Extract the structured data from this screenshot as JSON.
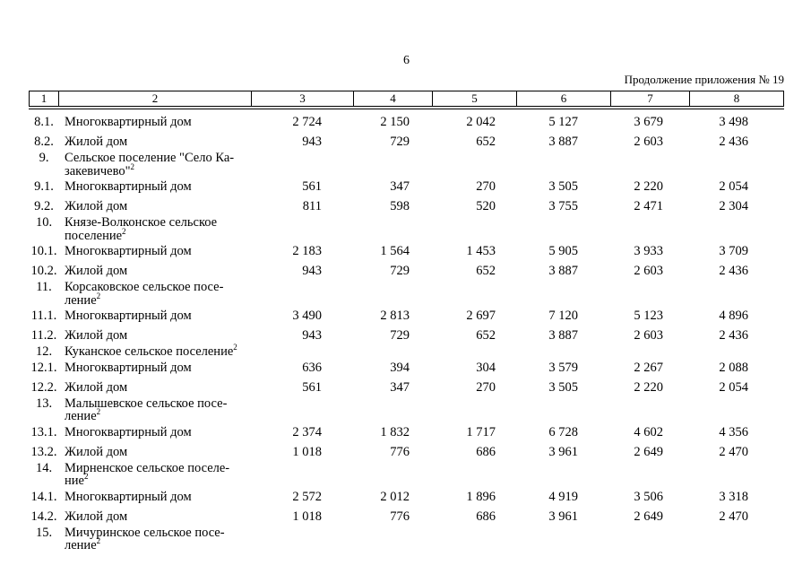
{
  "page": {
    "number": "6",
    "continuation_note": "Продолжение приложения № 19"
  },
  "table": {
    "header": [
      "1",
      "2",
      "3",
      "4",
      "5",
      "6",
      "7",
      "8"
    ],
    "rows": [
      {
        "type": "item",
        "num": "8.1.",
        "label": "Многоквартирный дом",
        "values": [
          "2 724",
          "2 150",
          "2 042",
          "5 127",
          "3 679",
          "3 498"
        ]
      },
      {
        "type": "item",
        "num": "8.2.",
        "label": "Жилой дом",
        "values": [
          "943",
          "729",
          "652",
          "3 887",
          "2 603",
          "2 436"
        ]
      },
      {
        "type": "section",
        "num": "9.",
        "label_lines": [
          "Сельское поселение \"Село Ка-",
          "закевичево\""
        ],
        "sup": "2"
      },
      {
        "type": "item",
        "num": "9.1.",
        "label": "Многоквартирный дом",
        "values": [
          "561",
          "347",
          "270",
          "3 505",
          "2 220",
          "2 054"
        ]
      },
      {
        "type": "item",
        "num": "9.2.",
        "label": "Жилой дом",
        "values": [
          "811",
          "598",
          "520",
          "3 755",
          "2 471",
          "2 304"
        ]
      },
      {
        "type": "section",
        "num": "10.",
        "label_lines": [
          "Князе-Волконское сельское",
          "поселение"
        ],
        "sup": "2"
      },
      {
        "type": "item",
        "num": "10.1.",
        "label": "Многоквартирный дом",
        "values": [
          "2 183",
          "1 564",
          "1 453",
          "5 905",
          "3 933",
          "3 709"
        ]
      },
      {
        "type": "item",
        "num": "10.2.",
        "label": "Жилой дом",
        "values": [
          "943",
          "729",
          "652",
          "3 887",
          "2 603",
          "2 436"
        ]
      },
      {
        "type": "section",
        "num": "11.",
        "label_lines": [
          "Корсаковское сельское посе-",
          "ление"
        ],
        "sup": "2"
      },
      {
        "type": "item",
        "num": "11.1.",
        "label": "Многоквартирный дом",
        "values": [
          "3 490",
          "2 813",
          "2 697",
          "7 120",
          "5 123",
          "4 896"
        ]
      },
      {
        "type": "item",
        "num": "11.2.",
        "label": "Жилой дом",
        "values": [
          "943",
          "729",
          "652",
          "3 887",
          "2 603",
          "2 436"
        ]
      },
      {
        "type": "section",
        "num": "12.",
        "label_lines": [
          "Куканское сельское поселение"
        ],
        "sup": "2"
      },
      {
        "type": "item",
        "num": "12.1.",
        "label": "Многоквартирный дом",
        "values": [
          "636",
          "394",
          "304",
          "3 579",
          "2 267",
          "2 088"
        ]
      },
      {
        "type": "item",
        "num": "12.2.",
        "label": "Жилой дом",
        "values": [
          "561",
          "347",
          "270",
          "3 505",
          "2 220",
          "2 054"
        ]
      },
      {
        "type": "section",
        "num": "13.",
        "label_lines": [
          "Малышевское сельское посе-",
          "ление"
        ],
        "sup": "2"
      },
      {
        "type": "item",
        "num": "13.1.",
        "label": "Многоквартирный дом",
        "values": [
          "2 374",
          "1 832",
          "1 717",
          "6 728",
          "4 602",
          "4 356"
        ]
      },
      {
        "type": "item",
        "num": "13.2.",
        "label": "Жилой дом",
        "values": [
          "1 018",
          "776",
          "686",
          "3 961",
          "2 649",
          "2 470"
        ]
      },
      {
        "type": "section",
        "num": "14.",
        "label_lines": [
          "Мирненское сельское поселе-",
          "ние"
        ],
        "sup": "2"
      },
      {
        "type": "item",
        "num": "14.1.",
        "label": "Многоквартирный дом",
        "values": [
          "2 572",
          "2 012",
          "1 896",
          "4 919",
          "3 506",
          "3 318"
        ]
      },
      {
        "type": "item",
        "num": "14.2.",
        "label": "Жилой дом",
        "values": [
          "1 018",
          "776",
          "686",
          "3 961",
          "2 649",
          "2 470"
        ]
      },
      {
        "type": "section",
        "num": "15.",
        "label_lines": [
          "Мичуринское сельское посе-",
          "ление"
        ],
        "sup": "2"
      }
    ]
  }
}
